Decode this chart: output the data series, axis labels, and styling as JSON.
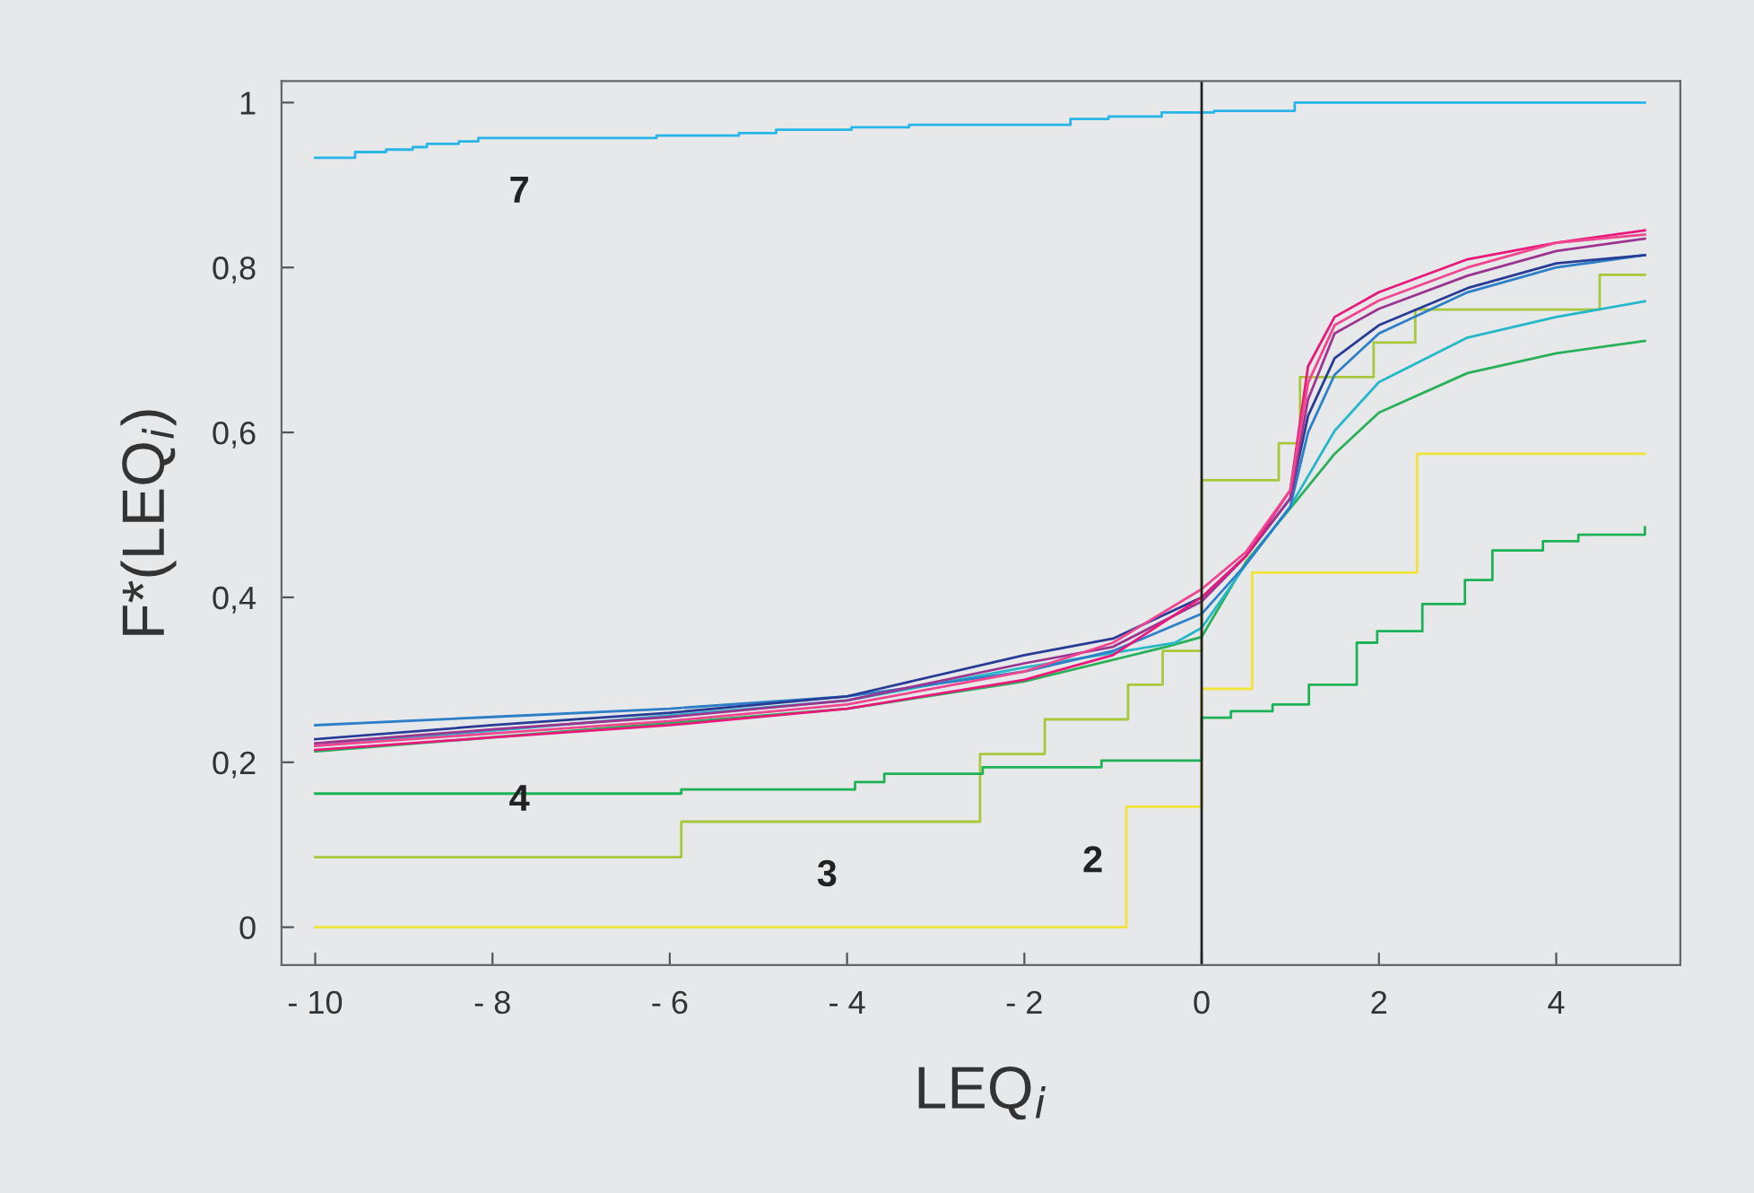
{
  "chart_data": {
    "type": "line",
    "xlabel": "LEQ$_{i}$",
    "ylabel": "F*(LEQ$_{i}$)",
    "xlim": [
      -10.38,
      5.4
    ],
    "ylim": [
      -0.046,
      1.026
    ],
    "xticks": [
      {
        "value": -10,
        "label": "- 10"
      },
      {
        "value": -8,
        "label": "- 8"
      },
      {
        "value": -6,
        "label": "- 6"
      },
      {
        "value": -4,
        "label": "- 4"
      },
      {
        "value": -2,
        "label": "- 2"
      },
      0,
      2,
      4
    ],
    "yticks": [
      0,
      {
        "value": 0.2,
        "label": "0,2"
      },
      {
        "value": 0.4,
        "label": "0,4"
      },
      {
        "value": 0.6,
        "label": "0,6"
      },
      {
        "value": 0.8,
        "label": "0,8"
      },
      1
    ],
    "grid": false,
    "legend": false,
    "ref_lines": [
      {
        "axis": "x",
        "value": 0,
        "color": "#222222"
      }
    ],
    "series": [
      {
        "type": "step",
        "name": "7",
        "color": "#29b5e8",
        "x": [
          -10,
          -9.55,
          -9.2,
          -8.9,
          -8.74,
          -8.38,
          -8.16,
          -6.15,
          -5.22,
          -4.8,
          -3.95,
          -3.3,
          -1.48,
          -1.05,
          -0.45,
          0.14,
          1.05,
          5
        ],
        "values": [
          0.933,
          0.94,
          0.943,
          0.946,
          0.95,
          0.953,
          0.957,
          0.96,
          0.963,
          0.967,
          0.97,
          0.973,
          0.98,
          0.983,
          0.988,
          0.99,
          1.0,
          1.0
        ]
      },
      {
        "type": "step",
        "name": "2",
        "color": "#f2e33a",
        "x": [
          -10,
          -0.85,
          0,
          0.57,
          2.43,
          5
        ],
        "values": [
          0,
          0.146,
          0.289,
          0.43,
          0.574,
          0.574
        ]
      },
      {
        "type": "step",
        "name": "3",
        "color": "#a8c83c",
        "x": [
          -10,
          -5.87,
          -2.5,
          -1.77,
          -0.83,
          -0.44,
          0,
          0.87,
          1.11,
          1.94,
          2.41,
          4.49,
          5
        ],
        "values": [
          0.085,
          0.128,
          0.21,
          0.252,
          0.294,
          0.335,
          0.542,
          0.587,
          0.667,
          0.709,
          0.749,
          0.791,
          0.791
        ]
      },
      {
        "type": "step",
        "name": "4",
        "color": "#1db257",
        "x": [
          -10,
          -5.87,
          -3.91,
          -3.58,
          -2.47,
          -1.13,
          0,
          0.33,
          0.8,
          1.21,
          1.75,
          1.98,
          2.49,
          2.97,
          3.28,
          3.85,
          4.25,
          5
        ],
        "values": [
          0.162,
          0.167,
          0.176,
          0.186,
          0.194,
          0.202,
          0.254,
          0.262,
          0.27,
          0.294,
          0.345,
          0.359,
          0.392,
          0.421,
          0.457,
          0.468,
          0.476,
          0.485
        ]
      },
      {
        "color": "#2bb05a",
        "x": [
          -10,
          -4,
          -2,
          -0.4,
          0,
          0.5,
          1,
          1.5,
          2,
          3,
          4,
          5
        ],
        "values": [
          0.213,
          0.265,
          0.298,
          0.34,
          0.352,
          0.443,
          0.508,
          0.574,
          0.624,
          0.672,
          0.696,
          0.711
        ]
      },
      {
        "color": "#26b7c8",
        "x": [
          -10,
          -4,
          -2,
          -0.3,
          0,
          0.5,
          1,
          1.5,
          2,
          3,
          4,
          5
        ],
        "values": [
          0.22,
          0.275,
          0.315,
          0.345,
          0.363,
          0.44,
          0.51,
          0.602,
          0.661,
          0.715,
          0.74,
          0.759
        ]
      },
      {
        "color": "#2d7fc8",
        "x": [
          -10,
          -8,
          -6,
          -4,
          -2,
          -1,
          0,
          0.5,
          1,
          1.2,
          1.5,
          2,
          3,
          4,
          5
        ],
        "values": [
          0.245,
          0.255,
          0.265,
          0.28,
          0.31,
          0.335,
          0.38,
          0.44,
          0.51,
          0.6,
          0.67,
          0.72,
          0.77,
          0.8,
          0.815
        ]
      },
      {
        "color": "#283c96",
        "x": [
          -10,
          -8,
          -6,
          -4,
          -2,
          -1,
          0,
          0.5,
          1,
          1.2,
          1.5,
          2,
          3,
          4,
          5
        ],
        "values": [
          0.228,
          0.245,
          0.26,
          0.28,
          0.33,
          0.35,
          0.4,
          0.45,
          0.52,
          0.62,
          0.69,
          0.73,
          0.775,
          0.805,
          0.815
        ]
      },
      {
        "color": "#9b3590",
        "x": [
          -10,
          -8,
          -6,
          -4,
          -2,
          -1,
          0,
          0.5,
          1,
          1.2,
          1.5,
          2,
          3,
          4,
          5
        ],
        "values": [
          0.223,
          0.24,
          0.255,
          0.275,
          0.32,
          0.34,
          0.395,
          0.45,
          0.52,
          0.64,
          0.72,
          0.75,
          0.79,
          0.82,
          0.835
        ]
      },
      {
        "color": "#e8197a",
        "x": [
          -10,
          -8,
          -6,
          -4,
          -2,
          -1,
          0,
          0.5,
          1,
          1.2,
          1.5,
          2,
          3,
          4,
          5
        ],
        "values": [
          0.215,
          0.23,
          0.245,
          0.265,
          0.3,
          0.33,
          0.4,
          0.45,
          0.53,
          0.68,
          0.74,
          0.77,
          0.81,
          0.83,
          0.845
        ]
      },
      {
        "color": "#f0458f",
        "x": [
          -10,
          -8,
          -6,
          -4,
          -2,
          -1,
          0,
          0.5,
          1,
          1.2,
          1.5,
          2,
          3,
          4,
          5
        ],
        "values": [
          0.22,
          0.235,
          0.25,
          0.27,
          0.31,
          0.345,
          0.41,
          0.455,
          0.53,
          0.66,
          0.73,
          0.76,
          0.8,
          0.83,
          0.84
        ]
      }
    ]
  }
}
